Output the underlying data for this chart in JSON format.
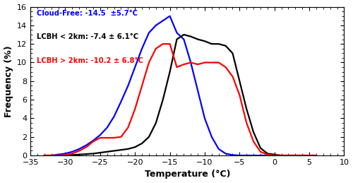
{
  "title": "",
  "xlabel": "Temperature (°C)",
  "ylabel": "Frequency (%)",
  "xlim": [
    -35,
    10
  ],
  "ylim": [
    0,
    16
  ],
  "yticks": [
    0,
    2,
    4,
    6,
    8,
    10,
    12,
    14,
    16
  ],
  "xticks": [
    -35,
    -30,
    -25,
    -20,
    -15,
    -10,
    -5,
    0,
    5,
    10
  ],
  "legend_labels": [
    "Cloud-Free: -14.5  ±5.7°C",
    "LCBH < 2km: -7.4 ± 6.1°C",
    "LCBH > 2km: -10.2 ± 6.8°C"
  ],
  "legend_colors": [
    "blue",
    "black",
    "red"
  ],
  "cloud_free_x": [
    -33,
    -32,
    -31,
    -30,
    -29,
    -28,
    -27,
    -26,
    -25,
    -24,
    -23,
    -22,
    -21,
    -20,
    -19,
    -18,
    -17,
    -16,
    -15,
    -14,
    -13,
    -12,
    -11,
    -10,
    -9,
    -8,
    -7,
    -6,
    -5,
    -4,
    -3,
    -2,
    -1,
    0,
    1,
    2,
    3,
    4,
    5,
    6
  ],
  "cloud_free_y": [
    0.0,
    0.0,
    0.1,
    0.2,
    0.4,
    0.7,
    1.1,
    1.6,
    2.2,
    3.0,
    4.2,
    5.8,
    7.5,
    9.5,
    11.5,
    13.2,
    14.0,
    14.5,
    15.0,
    13.2,
    12.5,
    10.0,
    7.0,
    4.0,
    2.0,
    0.7,
    0.2,
    0.05,
    0.0,
    0.0,
    0.0,
    0.0,
    0.0,
    0.0,
    0.0,
    0.0,
    0.0,
    0.0,
    0.0,
    0.0
  ],
  "lcbh_lt2_x": [
    -33,
    -32,
    -31,
    -30,
    -29,
    -28,
    -27,
    -26,
    -25,
    -24,
    -23,
    -22,
    -21,
    -20,
    -19,
    -18,
    -17,
    -16,
    -15,
    -14,
    -13,
    -12,
    -11,
    -10,
    -9,
    -8,
    -7,
    -6,
    -5,
    -4,
    -3,
    -2,
    -1,
    0,
    1,
    2,
    3,
    4,
    5,
    6
  ],
  "lcbh_lt2_y": [
    0.0,
    0.0,
    0.0,
    0.0,
    0.05,
    0.1,
    0.15,
    0.2,
    0.3,
    0.4,
    0.5,
    0.6,
    0.7,
    0.9,
    1.3,
    2.0,
    3.5,
    6.0,
    9.0,
    12.5,
    13.0,
    12.8,
    12.5,
    12.3,
    12.0,
    12.0,
    11.8,
    11.0,
    8.0,
    5.0,
    2.5,
    0.8,
    0.2,
    0.1,
    0.0,
    0.0,
    0.0,
    0.0,
    0.0,
    0.0
  ],
  "lcbh_gt2_x": [
    -33,
    -32,
    -31,
    -30,
    -29,
    -28,
    -27,
    -26,
    -25,
    -24,
    -23,
    -22,
    -21,
    -20,
    -19,
    -18,
    -17,
    -16,
    -15,
    -14,
    -13,
    -12,
    -11,
    -10,
    -9,
    -8,
    -7,
    -6,
    -5,
    -4,
    -3,
    -2,
    -1,
    0,
    1,
    2,
    3,
    4,
    5,
    6
  ],
  "lcbh_gt2_y": [
    0.0,
    0.0,
    0.0,
    0.05,
    0.2,
    0.5,
    0.9,
    1.5,
    1.9,
    1.9,
    1.9,
    2.0,
    3.0,
    5.0,
    7.5,
    10.0,
    11.5,
    12.0,
    12.0,
    9.5,
    9.8,
    10.0,
    9.8,
    10.0,
    10.0,
    10.0,
    9.5,
    8.5,
    6.5,
    3.5,
    1.5,
    0.4,
    0.1,
    0.0,
    0.0,
    0.0,
    0.0,
    0.0,
    0.0,
    0.0
  ],
  "background_color": "#ffffff",
  "line_width": 1.6,
  "legend_fontsize": 7.2,
  "axis_label_fontsize": 9,
  "tick_labelsize": 8
}
